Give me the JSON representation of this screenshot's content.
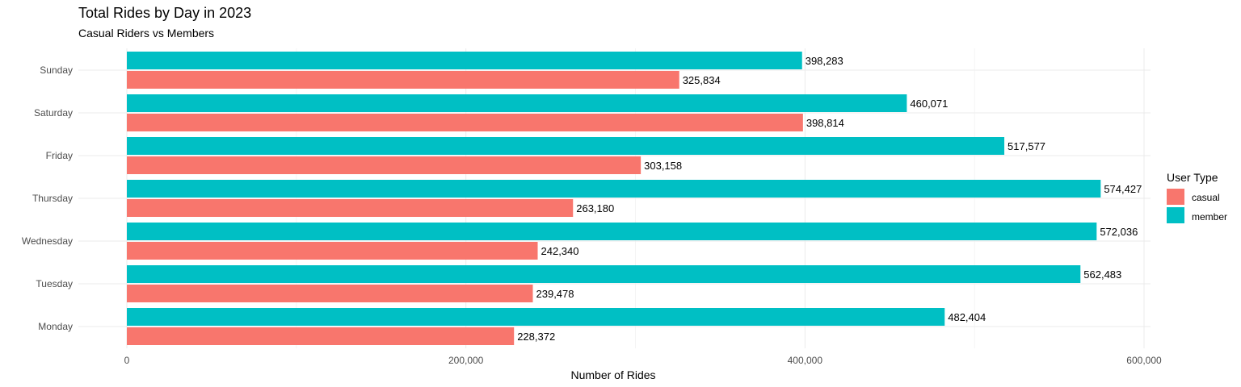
{
  "chart_data": {
    "type": "bar",
    "orientation": "horizontal",
    "title": "Total Rides by Day in 2023",
    "subtitle": "Casual Riders vs Members",
    "xlabel": "Number of Rides",
    "ylabel": "",
    "xlim": [
      0,
      600000
    ],
    "x_ticks": [
      0,
      200000,
      400000,
      600000
    ],
    "x_tick_labels": [
      "0",
      "200,000",
      "400,000",
      "600,000"
    ],
    "categories": [
      "Monday",
      "Tuesday",
      "Wednesday",
      "Thursday",
      "Friday",
      "Saturday",
      "Sunday"
    ],
    "series": [
      {
        "name": "casual",
        "color": "#F8766D",
        "values": [
          228372,
          239478,
          242340,
          263180,
          303158,
          398814,
          325834
        ],
        "labels": [
          "228,372",
          "239,478",
          "242,340",
          "263,180",
          "303,158",
          "398,814",
          "325,834"
        ]
      },
      {
        "name": "member",
        "color": "#00BFC4",
        "values": [
          482404,
          562483,
          572036,
          574427,
          517577,
          460071,
          398283
        ],
        "labels": [
          "482,404",
          "562,483",
          "572,036",
          "574,427",
          "517,577",
          "460,071",
          "398,283"
        ]
      }
    ],
    "legend": {
      "title": "User Type",
      "position": "right"
    },
    "grid": true
  }
}
